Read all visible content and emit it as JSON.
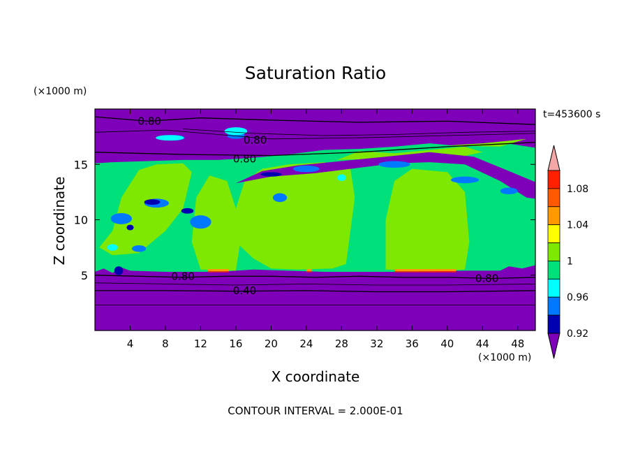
{
  "chart_data": {
    "type": "heatmap",
    "title": "Saturation Ratio",
    "xlabel": "X coordinate",
    "ylabel": "Z coordinate",
    "x_unit": "(×1000 m)",
    "y_unit": "(×1000 m)",
    "time_label": "t=453600 s",
    "footer": "CONTOUR INTERVAL = 2.000E-01",
    "xlim": [
      0,
      50
    ],
    "ylim": [
      0,
      20
    ],
    "x_ticks": [
      4,
      8,
      12,
      16,
      20,
      24,
      28,
      32,
      36,
      40,
      44,
      48
    ],
    "y_ticks": [
      5,
      10,
      15
    ],
    "contour_labels": [
      {
        "text": "0.80",
        "x": 6.2,
        "y": 18.9
      },
      {
        "text": "0.80",
        "x": 18.2,
        "y": 17.2
      },
      {
        "text": "0.80",
        "x": 17.0,
        "y": 15.5
      },
      {
        "text": "0.80",
        "x": 10.0,
        "y": 4.9
      },
      {
        "text": "0.40",
        "x": 17.0,
        "y": 3.6
      },
      {
        "text": "0.80",
        "x": 44.5,
        "y": 4.7
      }
    ],
    "colorbar": {
      "labels": [
        "1.08",
        "1.04",
        "1",
        "0.96",
        "0.92"
      ],
      "colors": [
        "#f4a7a7",
        "#ff2000",
        "#ff5a00",
        "#ff9a00",
        "#ffff00",
        "#7fe800",
        "#00e07a",
        "#00ffff",
        "#0078ff",
        "#0000b0",
        "#7e00b8"
      ]
    },
    "fields": {
      "background": "#7e00b8",
      "supersat": "#7fe800",
      "near_sat": "#00e07a",
      "blue": "#0078ff",
      "cyan": "#00ffff",
      "navy": "#0000b0",
      "orange": "#ff9a00",
      "red": "#ff2000"
    }
  }
}
